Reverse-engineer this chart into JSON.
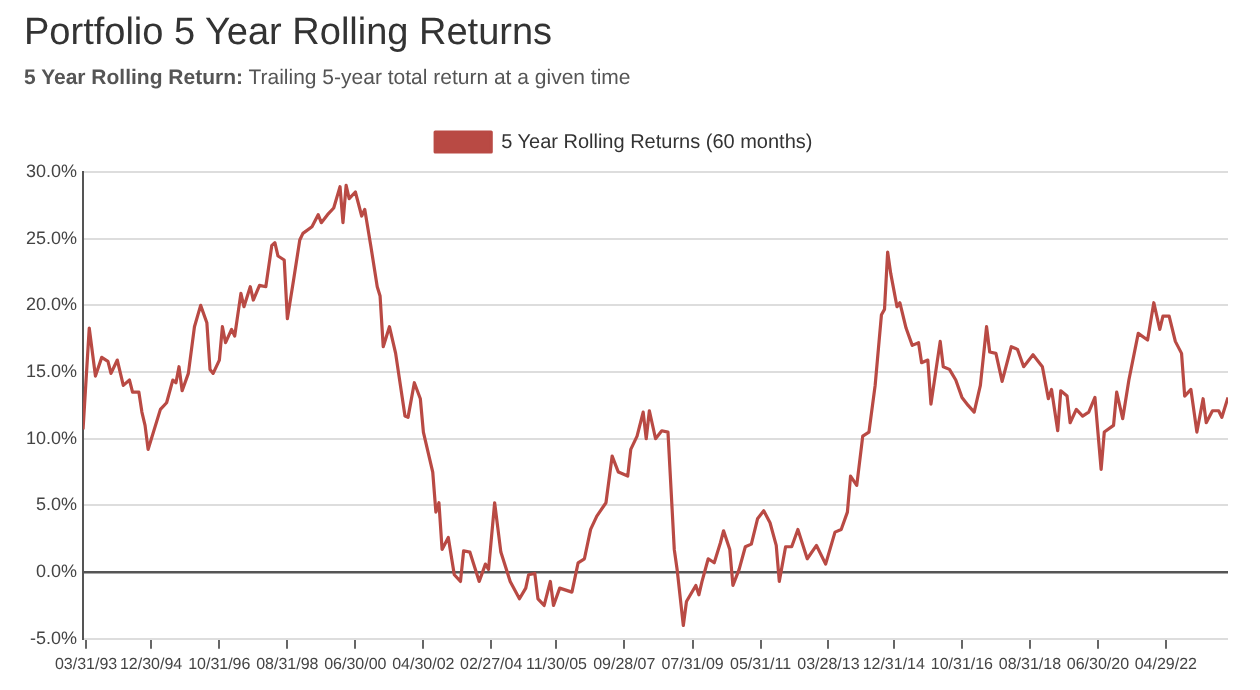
{
  "chart_data": {
    "type": "line",
    "title": "Portfolio 5 Year Rolling Returns",
    "subtitle": "5 Year Rolling Return: Trailing 5-year total return at a given time",
    "legend": "top",
    "grid": "y",
    "marker": "none",
    "line_style": "solid",
    "xlim": [
      "1993-03",
      "2024-01"
    ],
    "xticks": [
      {
        "value": "1993-03-31",
        "label": "03/31/93"
      },
      {
        "value": "1994-12-30",
        "label": "12/30/94"
      },
      {
        "value": "1996-10-31",
        "label": "10/31/96"
      },
      {
        "value": "1998-08-31",
        "label": "08/31/98"
      },
      {
        "value": "2000-06-30",
        "label": "06/30/00"
      },
      {
        "value": "2002-04-30",
        "label": "04/30/02"
      },
      {
        "value": "2004-02-27",
        "label": "02/27/04"
      },
      {
        "value": "2005-11-30",
        "label": "11/30/05"
      },
      {
        "value": "2007-09-28",
        "label": "09/28/07"
      },
      {
        "value": "2009-07-31",
        "label": "07/31/09"
      },
      {
        "value": "2011-05-31",
        "label": "05/31/11"
      },
      {
        "value": "2013-03-28",
        "label": "03/28/13"
      },
      {
        "value": "2014-12-31",
        "label": "12/31/14"
      },
      {
        "value": "2016-10-31",
        "label": "10/31/16"
      },
      {
        "value": "2018-08-31",
        "label": "08/31/18"
      },
      {
        "value": "2020-06-30",
        "label": "06/30/20"
      },
      {
        "value": "2022-04-29",
        "label": "04/29/22"
      }
    ],
    "ylim": [
      -5,
      30
    ],
    "yticks": [
      {
        "value": -5,
        "label": "-5.0%"
      },
      {
        "value": 0,
        "label": "0.0%"
      },
      {
        "value": 5,
        "label": "5.0%"
      },
      {
        "value": 10,
        "label": "10.0%"
      },
      {
        "value": 15,
        "label": "15.0%"
      },
      {
        "value": 20,
        "label": "20.0%"
      },
      {
        "value": 25,
        "label": "25.0%"
      },
      {
        "value": 30,
        "label": "30.0%"
      }
    ],
    "series": [
      {
        "name": "5 Year Rolling Returns (60 months)",
        "color": "#b94a44",
        "x": [
          "1993-03",
          "1993-05",
          "1993-07",
          "1993-09",
          "1993-11",
          "1993-12",
          "1994-02",
          "1994-04",
          "1994-06",
          "1994-07",
          "1994-09",
          "1994-10",
          "1994-11",
          "1994-12",
          "1995-04",
          "1995-06",
          "1995-08",
          "1995-09",
          "1995-10",
          "1995-11",
          "1996-01",
          "1996-03",
          "1996-05",
          "1996-07",
          "1996-08",
          "1996-09",
          "1996-11",
          "1996-12",
          "1997-01",
          "1997-03",
          "1997-04",
          "1997-06",
          "1997-07",
          "1997-09",
          "1997-10",
          "1997-12",
          "1998-02",
          "1998-04",
          "1998-05",
          "1998-06",
          "1998-08",
          "1998-09",
          "1998-11",
          "1999-01",
          "1999-02",
          "1999-05",
          "1999-07",
          "1999-08",
          "1999-10",
          "1999-12",
          "2000-02",
          "2000-03",
          "2000-04",
          "2000-05",
          "2000-07",
          "2000-09",
          "2000-10",
          "2000-12",
          "2001-02",
          "2001-03",
          "2001-04",
          "2001-06",
          "2001-08",
          "2001-11",
          "2001-12",
          "2002-02",
          "2002-04",
          "2002-05",
          "2002-08",
          "2002-09",
          "2002-10",
          "2002-11",
          "2003-01",
          "2003-03",
          "2003-05",
          "2003-06",
          "2003-08",
          "2003-11",
          "2004-01",
          "2004-02",
          "2004-04",
          "2004-06",
          "2004-09",
          "2004-12",
          "2005-02",
          "2005-03",
          "2005-05",
          "2005-06",
          "2005-08",
          "2005-10",
          "2005-11",
          "2006-01",
          "2006-05",
          "2006-07",
          "2006-09",
          "2006-11",
          "2007-01",
          "2007-04",
          "2007-06",
          "2007-08",
          "2007-11",
          "2007-12",
          "2008-02",
          "2008-04",
          "2008-05",
          "2008-06",
          "2008-08",
          "2008-10",
          "2008-12",
          "2009-02",
          "2009-03",
          "2009-05",
          "2009-06",
          "2009-09",
          "2009-10",
          "2009-11",
          "2010-01",
          "2010-03",
          "2010-05",
          "2010-06",
          "2010-08",
          "2010-09",
          "2010-11",
          "2011-01",
          "2011-03",
          "2011-05",
          "2011-07",
          "2011-09",
          "2011-11",
          "2011-12",
          "2012-02",
          "2012-04",
          "2012-06",
          "2012-09",
          "2012-12",
          "2013-03",
          "2013-06",
          "2013-08",
          "2013-10",
          "2013-11",
          "2014-01",
          "2014-03",
          "2014-05",
          "2014-07",
          "2014-09",
          "2014-10",
          "2014-11",
          "2014-12",
          "2015-02",
          "2015-03",
          "2015-05",
          "2015-07",
          "2015-09",
          "2015-10",
          "2015-12",
          "2016-01",
          "2016-04",
          "2016-05",
          "2016-07",
          "2016-09",
          "2016-11",
          "2017-01",
          "2017-03",
          "2017-05",
          "2017-07",
          "2017-08",
          "2017-10",
          "2017-12",
          "2018-03",
          "2018-05",
          "2018-07",
          "2018-10",
          "2019-01",
          "2019-03",
          "2019-04",
          "2019-06",
          "2019-07",
          "2019-09",
          "2019-10",
          "2019-12",
          "2020-02",
          "2020-04",
          "2020-06",
          "2020-08",
          "2020-09",
          "2020-12",
          "2021-01",
          "2021-03",
          "2021-05",
          "2021-08",
          "2021-11",
          "2022-01",
          "2022-03",
          "2022-04",
          "2022-06",
          "2022-08",
          "2022-10",
          "2022-11",
          "2023-01",
          "2023-03",
          "2023-05",
          "2023-06",
          "2023-08",
          "2023-10",
          "2023-11",
          "2024-01"
        ],
        "values": [
          10.7,
          18.3,
          14.7,
          16.1,
          15.8,
          14.9,
          15.9,
          14.0,
          14.4,
          13.5,
          13.5,
          12.0,
          11.0,
          9.2,
          12.2,
          12.7,
          14.4,
          14.2,
          15.4,
          13.6,
          14.9,
          18.4,
          20.0,
          18.7,
          15.2,
          14.9,
          15.9,
          18.4,
          17.2,
          18.2,
          17.7,
          20.9,
          19.9,
          21.4,
          20.4,
          21.5,
          21.4,
          24.5,
          24.7,
          23.7,
          23.4,
          19.0,
          21.9,
          24.9,
          25.4,
          25.9,
          26.8,
          26.2,
          26.8,
          27.3,
          28.9,
          26.2,
          29.0,
          28.0,
          28.5,
          26.7,
          27.2,
          24.4,
          21.4,
          20.7,
          16.9,
          18.4,
          16.4,
          11.7,
          11.6,
          14.2,
          13.0,
          10.5,
          7.5,
          4.5,
          5.2,
          1.7,
          2.6,
          -0.2,
          -0.7,
          1.6,
          1.5,
          -0.7,
          0.6,
          0.2,
          5.2,
          1.5,
          -0.7,
          -2.0,
          -1.2,
          -0.2,
          -0.1,
          -2.0,
          -2.5,
          -0.7,
          -2.5,
          -1.2,
          -1.5,
          0.7,
          1.0,
          3.2,
          4.2,
          5.2,
          8.7,
          7.5,
          7.2,
          9.2,
          10.2,
          12.0,
          10.0,
          12.1,
          10.0,
          10.6,
          10.5,
          1.7,
          0.2,
          -4.0,
          -2.2,
          -1.0,
          -1.7,
          -0.7,
          1.0,
          0.7,
          2.2,
          3.1,
          1.7,
          -1.0,
          0.2,
          1.9,
          2.1,
          4.0,
          4.6,
          3.7,
          2.0,
          -0.7,
          1.9,
          1.9,
          3.2,
          1.0,
          2.0,
          0.6,
          3.0,
          3.2,
          4.5,
          7.2,
          6.5,
          10.2,
          10.5,
          14.0,
          19.3,
          19.7,
          24.0,
          22.4,
          19.9,
          20.2,
          18.3,
          17.0,
          17.2,
          15.7,
          15.9,
          12.6,
          17.3,
          15.4,
          15.2,
          14.4,
          13.1,
          12.5,
          12.0,
          14.0,
          18.4,
          16.5,
          16.4,
          14.3,
          16.9,
          16.7,
          15.4,
          16.3,
          15.4,
          13.0,
          13.7,
          10.6,
          13.6,
          13.2,
          11.2,
          12.2,
          11.7,
          12.0,
          13.1,
          7.7,
          10.5,
          11.0,
          13.5,
          11.5,
          14.4,
          17.9,
          17.4,
          20.2,
          18.2,
          19.2,
          19.2,
          17.3,
          16.4,
          13.2,
          13.7,
          10.5,
          13.0,
          11.2,
          12.1,
          12.1,
          11.6,
          13.1
        ]
      }
    ]
  }
}
